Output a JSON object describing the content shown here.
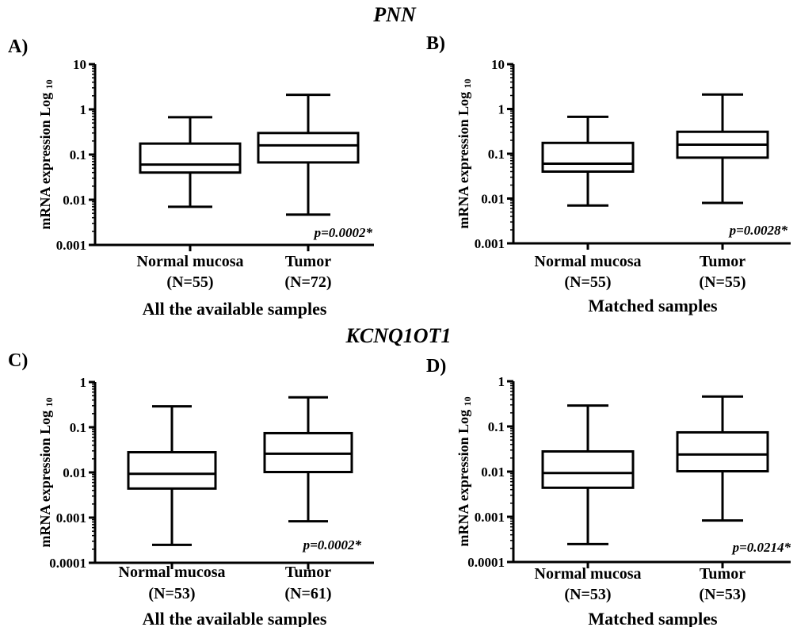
{
  "group_titles": [
    "PNN",
    "KCNQ1OT1"
  ],
  "chart_data": [
    {
      "type": "boxplot",
      "panel": "A)",
      "group": "PNN",
      "subtitle": "All the available samples",
      "ylabel": "mRNA expression Log",
      "ylabel_sub": "10",
      "yscale": "log",
      "ylim": [
        0.001,
        10
      ],
      "ticks": [
        {
          "value": 0.001,
          "label": "0.001"
        },
        {
          "value": 0.01,
          "label": "0.01"
        },
        {
          "value": 0.1,
          "label": "0.1"
        },
        {
          "value": 1,
          "label": "1"
        },
        {
          "value": 10,
          "label": "10"
        }
      ],
      "boxes": [
        {
          "line1": "Normal mucosa",
          "line2": "(N=55)",
          "min": 0.007,
          "q1": 0.04,
          "median": 0.06,
          "q3": 0.175,
          "max": 0.67
        },
        {
          "line1": "Tumor",
          "line2": "(N=72)",
          "min": 0.0047,
          "q1": 0.067,
          "median": 0.16,
          "q3": 0.3,
          "max": 2.1
        }
      ],
      "pvalue": "p=0.0002*"
    },
    {
      "type": "boxplot",
      "panel": "B)",
      "group": "PNN",
      "subtitle": "Matched samples",
      "ylabel": "mRNA expression Log",
      "ylabel_sub": "10",
      "yscale": "log",
      "ylim": [
        0.001,
        10
      ],
      "ticks": [
        {
          "value": 0.001,
          "label": "0.001"
        },
        {
          "value": 0.01,
          "label": "0.01"
        },
        {
          "value": 0.1,
          "label": "0.1"
        },
        {
          "value": 1,
          "label": "1"
        },
        {
          "value": 10,
          "label": "10"
        }
      ],
      "boxes": [
        {
          "line1": "Normal mucosa",
          "line2": "(N=55)",
          "min": 0.007,
          "q1": 0.04,
          "median": 0.06,
          "q3": 0.175,
          "max": 0.67
        },
        {
          "line1": "Tumor",
          "line2": "(N=55)",
          "min": 0.008,
          "q1": 0.082,
          "median": 0.16,
          "q3": 0.31,
          "max": 2.1
        }
      ],
      "pvalue": "p=0.0028*"
    },
    {
      "type": "boxplot",
      "panel": "C)",
      "group": "KCNQ1OT1",
      "subtitle": "All the available samples",
      "ylabel": "mRNA expression Log",
      "ylabel_sub": "10",
      "yscale": "log",
      "ylim": [
        0.0001,
        1
      ],
      "ticks": [
        {
          "value": 0.0001,
          "label": "0.0001"
        },
        {
          "value": 0.001,
          "label": "0.001"
        },
        {
          "value": 0.01,
          "label": "0.01"
        },
        {
          "value": 0.1,
          "label": "0.1"
        },
        {
          "value": 1,
          "label": "1"
        }
      ],
      "boxes": [
        {
          "line1": "Normal mucosa",
          "line2": "(N=53)",
          "min": 0.00025,
          "q1": 0.0044,
          "median": 0.0093,
          "q3": 0.028,
          "max": 0.29
        },
        {
          "line1": "Tumor",
          "line2": "(N=61)",
          "min": 0.00083,
          "q1": 0.0102,
          "median": 0.026,
          "q3": 0.074,
          "max": 0.46
        }
      ],
      "pvalue": "p=0.0002*"
    },
    {
      "type": "boxplot",
      "panel": "D)",
      "group": "KCNQ1OT1",
      "subtitle": "Matched samples",
      "ylabel": "mRNA expression Log",
      "ylabel_sub": "10",
      "yscale": "log",
      "ylim": [
        0.0001,
        1
      ],
      "ticks": [
        {
          "value": 0.0001,
          "label": "0.0001"
        },
        {
          "value": 0.001,
          "label": "0.001"
        },
        {
          "value": 0.01,
          "label": "0.01"
        },
        {
          "value": 0.1,
          "label": "0.1"
        },
        {
          "value": 1,
          "label": "1"
        }
      ],
      "boxes": [
        {
          "line1": "Normal mucosa",
          "line2": "(N=53)",
          "min": 0.00025,
          "q1": 0.0044,
          "median": 0.0093,
          "q3": 0.028,
          "max": 0.29
        },
        {
          "line1": "Tumor",
          "line2": "(N=53)",
          "min": 0.00083,
          "q1": 0.0102,
          "median": 0.024,
          "q3": 0.074,
          "max": 0.46
        }
      ],
      "pvalue": "p=0.0214*"
    }
  ]
}
